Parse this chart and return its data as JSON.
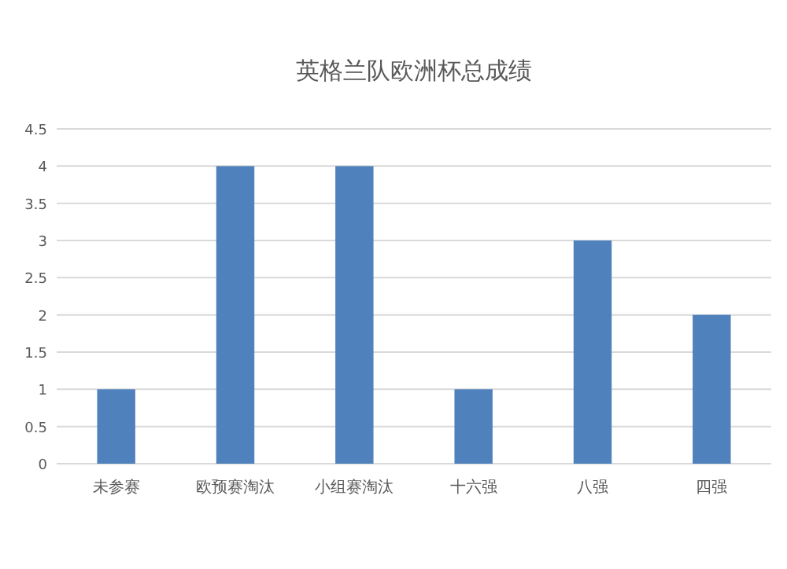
{
  "chart_data": {
    "type": "bar",
    "title": "英格兰队欧洲杯总成绩",
    "categories": [
      "未参赛",
      "欧预赛淘汰",
      "小组赛淘汰",
      "十六强",
      "八强",
      "四强"
    ],
    "values": [
      1,
      4,
      4,
      1,
      3,
      2
    ],
    "color": "#4f81bd",
    "ylim": [
      0,
      4.5
    ],
    "yticks": [
      0,
      0.5,
      1,
      1.5,
      2,
      2.5,
      3,
      3.5,
      4,
      4.5
    ],
    "grid": "y"
  }
}
